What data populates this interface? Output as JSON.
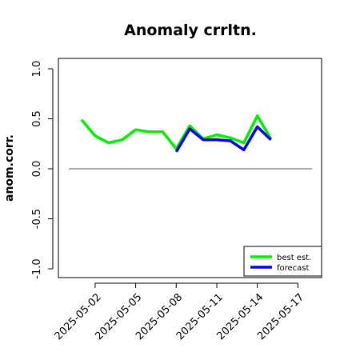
{
  "chart_data": {
    "type": "line",
    "title": "Anomaly crrltn.",
    "xlabel": "",
    "ylabel": "anom.corr.",
    "ylim": [
      -1.0,
      1.0
    ],
    "yticks": [
      "-1.0",
      "-0.5",
      "0.0",
      "0.5",
      "1.0"
    ],
    "xticks": [
      "2025-05-02",
      "2025-05-05",
      "2025-05-08",
      "2025-05-11",
      "2025-05-14",
      "2025-05-17"
    ],
    "highlight_tick": "2025-05-08",
    "highlight_color": "#2e8b2e",
    "x": [
      "2025-05-01",
      "2025-05-02",
      "2025-05-03",
      "2025-05-04",
      "2025-05-05",
      "2025-05-06",
      "2025-05-07",
      "2025-05-08",
      "2025-05-09",
      "2025-05-10",
      "2025-05-11",
      "2025-05-12",
      "2025-05-13",
      "2025-05-14",
      "2025-05-15"
    ],
    "reference_line": 0.0,
    "series": [
      {
        "name": "best est.",
        "color": "#00ee00",
        "values": [
          0.49,
          0.33,
          0.26,
          0.29,
          0.39,
          0.37,
          0.37,
          0.2,
          0.43,
          0.3,
          0.34,
          0.31,
          0.26,
          0.53,
          0.3
        ]
      },
      {
        "name": "forecast",
        "color": "#0000ee",
        "values": [
          null,
          null,
          null,
          null,
          null,
          null,
          null,
          0.17,
          0.4,
          0.29,
          0.29,
          0.28,
          0.19,
          0.42,
          0.29
        ]
      }
    ],
    "legend_position": "bottom-right",
    "grid": false
  }
}
